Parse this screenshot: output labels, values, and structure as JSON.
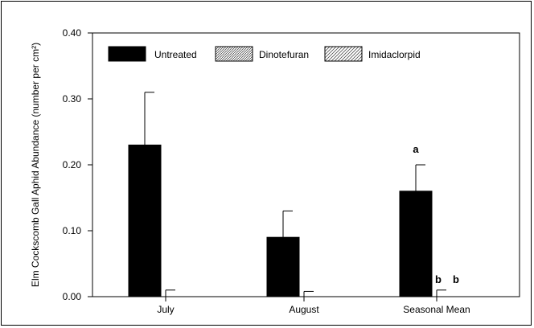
{
  "chart_data": {
    "type": "bar",
    "ylabel": "Elm Cockscomb Gall Aphid Abundance (number per cm²)",
    "ylim": [
      0,
      0.4
    ],
    "yticks": [
      "0.00",
      "0.10",
      "0.20",
      "0.30",
      "0.40"
    ],
    "yticks_values": [
      0,
      0.1,
      0.2,
      0.3,
      0.4
    ],
    "categories": [
      "July",
      "August",
      "Seasonal Mean"
    ],
    "series": [
      {
        "name": "Untreated",
        "values": [
          0.23,
          0.09,
          0.16
        ],
        "errors": [
          0.08,
          0.04,
          0.04
        ],
        "pattern": "solid"
      },
      {
        "name": "Dinotefuran",
        "values": [
          0.0,
          0.0,
          0.0
        ],
        "errors": [
          0.01,
          0.008,
          0.01
        ],
        "pattern": "dense"
      },
      {
        "name": "Imidaclorpid",
        "values": [
          0.0,
          0.0,
          0.0
        ],
        "errors": [
          0.0,
          0.0,
          0.0
        ],
        "pattern": "hatch"
      }
    ],
    "annotations": [
      {
        "category": "Seasonal Mean",
        "series": "Untreated",
        "text": "a"
      },
      {
        "category": "Seasonal Mean",
        "series": "Dinotefuran",
        "text": "b"
      },
      {
        "category": "Seasonal Mean",
        "series": "Imidaclorpid",
        "text": "b"
      }
    ],
    "grid": false,
    "legend_position": "top"
  }
}
